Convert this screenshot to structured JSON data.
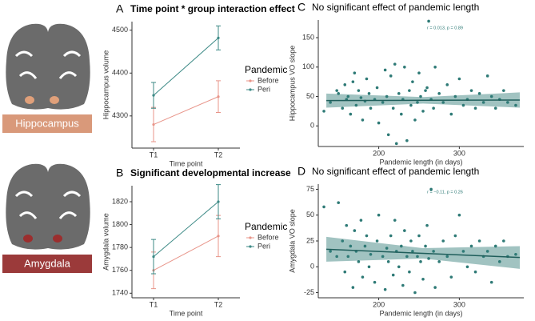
{
  "labels": {
    "hippocampus": "Hippocampus",
    "amygdala": "Amygdala"
  },
  "chart_data": [
    {
      "panel": "A",
      "type": "line",
      "title": "Time point * group interaction effect",
      "xlabel": "Time point",
      "ylabel": "Hippocampus volume",
      "categories": [
        "T1",
        "T2"
      ],
      "ylim": [
        4225,
        4520
      ],
      "yticks": [
        4300,
        4400,
        4500
      ],
      "legend_title": "Pandemic",
      "series": [
        {
          "name": "Before",
          "color": "#e8958a",
          "values": [
            4280,
            4345
          ],
          "errors": [
            40,
            37
          ]
        },
        {
          "name": "Peri",
          "color": "#3d8a86",
          "values": [
            4348,
            4482
          ],
          "errors": [
            30,
            28
          ]
        }
      ]
    },
    {
      "panel": "B",
      "type": "line",
      "title": "Significant developmental increase",
      "xlabel": "Time point",
      "ylabel": "Amygdala volume",
      "categories": [
        "T1",
        "T2"
      ],
      "ylim": [
        1736,
        1834
      ],
      "yticks": [
        1740,
        1760,
        1780,
        1800,
        1820
      ],
      "legend_title": "Pandemic",
      "series": [
        {
          "name": "Before",
          "color": "#e8958a",
          "values": [
            1760,
            1790
          ],
          "errors": [
            16,
            18
          ]
        },
        {
          "name": "Peri",
          "color": "#3d8a86",
          "values": [
            1772,
            1820
          ],
          "errors": [
            15,
            15
          ]
        }
      ]
    },
    {
      "panel": "C",
      "type": "scatter",
      "title": "No significant effect of pandemic length",
      "xlabel": "Pandemic length (in days)",
      "ylabel": "Hippocampus VO slope",
      "annotation": "r = 0.013, p = 0.89",
      "color": "#2e7a76",
      "xlim": [
        125,
        380
      ],
      "xticks": [
        200,
        300
      ],
      "ylim": [
        -35,
        180
      ],
      "yticks": [
        0,
        50,
        100,
        150
      ],
      "x": [
        132,
        140,
        148,
        150,
        155,
        158,
        160,
        162,
        165,
        168,
        170,
        172,
        175,
        178,
        180,
        183,
        185,
        188,
        190,
        195,
        198,
        200,
        205,
        208,
        210,
        212,
        215,
        218,
        220,
        222,
        225,
        228,
        230,
        232,
        235,
        238,
        240,
        242,
        245,
        248,
        250,
        252,
        255,
        258,
        260,
        262,
        265,
        268,
        270,
        275,
        280,
        285,
        290,
        295,
        300,
        305,
        310,
        315,
        320,
        325,
        330,
        335,
        340,
        345,
        350,
        355,
        360,
        370
      ],
      "values": [
        25,
        40,
        60,
        55,
        30,
        70,
        45,
        50,
        20,
        75,
        90,
        35,
        60,
        48,
        10,
        42,
        80,
        55,
        30,
        45,
        65,
        5,
        40,
        95,
        50,
        -15,
        85,
        30,
        105,
        -30,
        55,
        20,
        45,
        100,
        -25,
        60,
        35,
        75,
        10,
        40,
        90,
        50,
        25,
        60,
        65,
        178,
        45,
        30,
        100,
        55,
        40,
        70,
        20,
        50,
        80,
        35,
        45,
        60,
        30,
        55,
        40,
        85,
        50,
        30,
        45,
        60,
        40,
        35
      ],
      "fit": {
        "x": [
          135,
          255,
          375
        ],
        "y": [
          43,
          43.5,
          44
        ],
        "lower": [
          31,
          38,
          31
        ],
        "upper": [
          55,
          49,
          57
        ]
      }
    },
    {
      "panel": "D",
      "type": "scatter",
      "title": "No significant effect of pandemic length",
      "xlabel": "Pandemic length (in days)",
      "ylabel": "Amygdala VO slope",
      "annotation": "r = −0.11, p = 0.26",
      "color": "#2e7a76",
      "xlim": [
        125,
        380
      ],
      "xticks": [
        200,
        300
      ],
      "ylim": [
        -30,
        80
      ],
      "yticks": [
        -25,
        0,
        25,
        50,
        75
      ],
      "x": [
        132,
        140,
        148,
        150,
        155,
        158,
        160,
        162,
        165,
        168,
        170,
        172,
        175,
        178,
        180,
        183,
        185,
        188,
        190,
        195,
        198,
        200,
        205,
        208,
        210,
        212,
        215,
        218,
        220,
        222,
        225,
        228,
        230,
        232,
        235,
        238,
        240,
        242,
        245,
        248,
        250,
        252,
        255,
        258,
        260,
        262,
        265,
        268,
        270,
        275,
        280,
        285,
        290,
        295,
        300,
        305,
        310,
        315,
        320,
        325,
        330,
        335,
        340,
        345,
        350,
        355,
        360,
        370
      ],
      "values": [
        58,
        15,
        10,
        62,
        25,
        -5,
        40,
        10,
        20,
        -20,
        35,
        15,
        5,
        45,
        -10,
        20,
        30,
        0,
        12,
        -15,
        25,
        50,
        10,
        -22,
        18,
        5,
        30,
        -8,
        45,
        15,
        0,
        20,
        -18,
        35,
        10,
        -5,
        25,
        15,
        -25,
        10,
        30,
        5,
        -12,
        20,
        40,
        8,
        75,
        15,
        -20,
        5,
        25,
        10,
        -10,
        30,
        50,
        15,
        0,
        20,
        -5,
        25,
        10,
        15,
        -15,
        20,
        5,
        25,
        10,
        12
      ],
      "fit": {
        "x": [
          135,
          255,
          375
        ],
        "y": [
          17,
          13,
          9
        ],
        "lower": [
          5,
          8,
          -2
        ],
        "upper": [
          29,
          18,
          20
        ]
      }
    }
  ]
}
